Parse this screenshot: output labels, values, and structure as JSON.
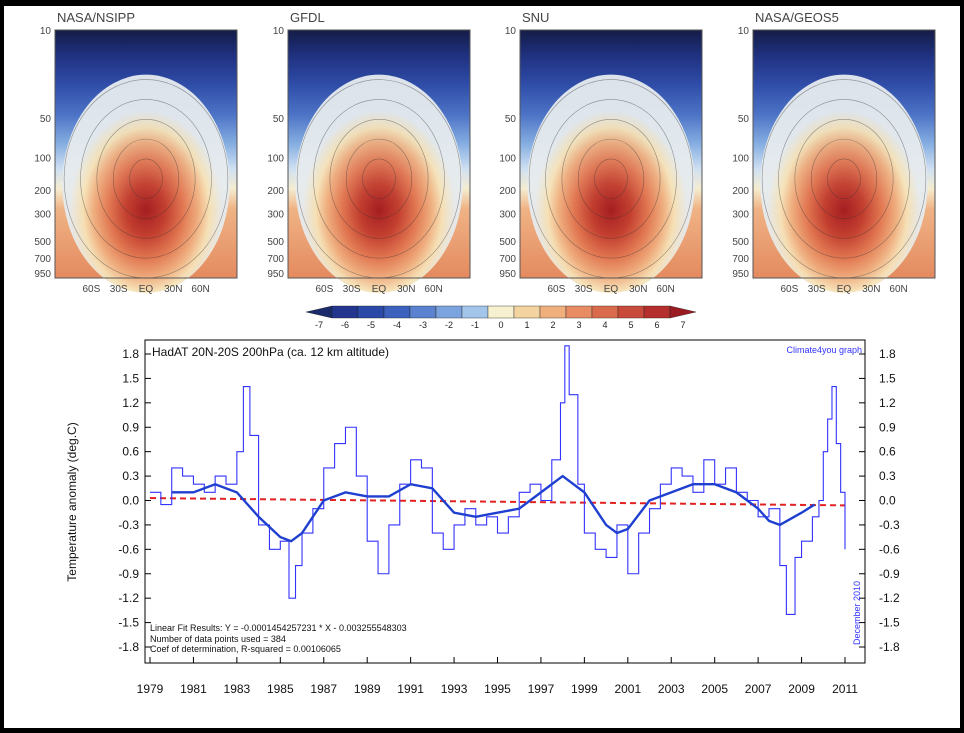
{
  "chart_data": [
    {
      "type": "heatmap",
      "panels": [
        {
          "title": "NASA/NSIPP"
        },
        {
          "title": "GFDL"
        },
        {
          "title": "SNU"
        },
        {
          "title": "NASA/GEOS5"
        }
      ],
      "y_ticks": [
        "10",
        "50",
        "100",
        "200",
        "300",
        "500",
        "700",
        "950"
      ],
      "x_ticks": [
        "60S",
        "30S",
        "EQ",
        "30N",
        "60N"
      ],
      "colorbar_labels": [
        "-7",
        "-6",
        "-5",
        "-4",
        "-3",
        "-2",
        "-1",
        "0",
        "1",
        "2",
        "3",
        "4",
        "5",
        "6",
        "7"
      ],
      "colorbar_colors": [
        "#1b2a6b",
        "#22358f",
        "#2b4aa8",
        "#3c62bd",
        "#5a82cf",
        "#7ba3de",
        "#a3c5ea",
        "#f6f1cf",
        "#f3d3a0",
        "#efb07d",
        "#e78c63",
        "#da6a4c",
        "#c84a3a",
        "#b52f2d",
        "#9b1b22"
      ]
    },
    {
      "type": "line",
      "title": "HadAT 20N-20S 200hPa (ca. 12 km altitude)",
      "credit": "Climate4you graph",
      "ylabel": "Temperature anomaly (deg.C)",
      "ylim": [
        -1.8,
        1.8
      ],
      "y_ticks": [
        "1.8",
        "1.5",
        "1.2",
        "0.9",
        "0.6",
        "0.3",
        "0.0",
        "-0.3",
        "-0.6",
        "-0.9",
        "-1.2",
        "-1.5",
        "-1.8"
      ],
      "xlim": [
        1979,
        2011
      ],
      "x_ticks": [
        "1979",
        "1981",
        "1983",
        "1985",
        "1987",
        "1989",
        "1991",
        "1993",
        "1995",
        "1997",
        "1999",
        "2001",
        "2003",
        "2005",
        "2007",
        "2009",
        "2011"
      ],
      "end_label": "December 2010",
      "fit_text": {
        "line1": "Linear Fit Results:   Y = -0.0001454257231 * X - 0.003255548303",
        "line2": "Number of data points used = 384",
        "line3": "Coef of determination, R-squared = 0.00106065"
      },
      "monthly_anomaly": {
        "name": "",
        "x": [
          1979.0,
          1979.5,
          1980.0,
          1980.5,
          1981.0,
          1981.5,
          1982.0,
          1982.5,
          1983.0,
          1983.3,
          1983.6,
          1984.0,
          1984.5,
          1985.0,
          1985.4,
          1985.7,
          1986.0,
          1986.5,
          1987.0,
          1987.5,
          1988.0,
          1988.5,
          1989.0,
          1989.5,
          1990.0,
          1990.5,
          1991.0,
          1991.5,
          1992.0,
          1992.5,
          1993.0,
          1993.5,
          1994.0,
          1994.5,
          1995.0,
          1995.5,
          1996.0,
          1996.5,
          1997.0,
          1997.5,
          1997.9,
          1998.1,
          1998.3,
          1998.7,
          1999.0,
          1999.5,
          2000.0,
          2000.5,
          2001.0,
          2001.5,
          2002.0,
          2002.5,
          2003.0,
          2003.5,
          2004.0,
          2004.5,
          2005.0,
          2005.5,
          2006.0,
          2006.5,
          2007.0,
          2007.5,
          2008.0,
          2008.3,
          2008.7,
          2009.0,
          2009.5,
          2009.8,
          2010.0,
          2010.2,
          2010.4,
          2010.6,
          2010.8,
          2011.0
        ],
        "y": [
          0.1,
          -0.05,
          0.4,
          0.3,
          0.2,
          0.1,
          0.3,
          0.2,
          0.6,
          1.4,
          0.8,
          -0.3,
          -0.6,
          -0.5,
          -1.2,
          -0.8,
          -0.4,
          -0.1,
          0.4,
          0.7,
          0.9,
          0.3,
          -0.5,
          -0.9,
          -0.3,
          0.2,
          0.5,
          0.4,
          -0.4,
          -0.6,
          -0.3,
          -0.1,
          -0.3,
          -0.2,
          -0.4,
          -0.2,
          0.1,
          0.2,
          0.0,
          0.5,
          1.2,
          1.9,
          1.3,
          0.2,
          -0.4,
          -0.6,
          -0.7,
          -0.3,
          -0.9,
          -0.4,
          -0.1,
          0.2,
          0.4,
          0.3,
          0.1,
          0.5,
          0.2,
          0.4,
          0.1,
          0.0,
          -0.2,
          -0.1,
          -0.8,
          -1.4,
          -0.7,
          -0.5,
          -0.2,
          0.0,
          0.6,
          1.0,
          1.4,
          0.7,
          0.1,
          -0.6
        ]
      },
      "running_mean": {
        "name": "",
        "x": [
          1980.0,
          1981.0,
          1982.0,
          1983.0,
          1984.0,
          1985.0,
          1985.5,
          1986.0,
          1987.0,
          1988.0,
          1989.0,
          1990.0,
          1991.0,
          1992.0,
          1993.0,
          1994.0,
          1995.0,
          1996.0,
          1997.0,
          1998.0,
          1999.0,
          2000.0,
          2000.5,
          2001.0,
          2002.0,
          2003.0,
          2004.0,
          2005.0,
          2006.0,
          2007.0,
          2007.5,
          2008.0,
          2009.0,
          2009.6
        ],
        "y": [
          0.1,
          0.1,
          0.2,
          0.1,
          -0.2,
          -0.45,
          -0.5,
          -0.4,
          0.0,
          0.1,
          0.05,
          0.05,
          0.2,
          0.15,
          -0.15,
          -0.2,
          -0.15,
          -0.1,
          0.1,
          0.3,
          0.1,
          -0.3,
          -0.4,
          -0.35,
          0.0,
          0.1,
          0.2,
          0.2,
          0.1,
          -0.1,
          -0.25,
          -0.3,
          -0.15,
          -0.05
        ]
      },
      "trend": {
        "name": "",
        "x": [
          1979,
          2011
        ],
        "y": [
          0.03,
          -0.06
        ]
      },
      "colors": {
        "anomaly": "#3333ff",
        "mean": "#1f3fd0",
        "trend": "#e32222"
      }
    }
  ]
}
